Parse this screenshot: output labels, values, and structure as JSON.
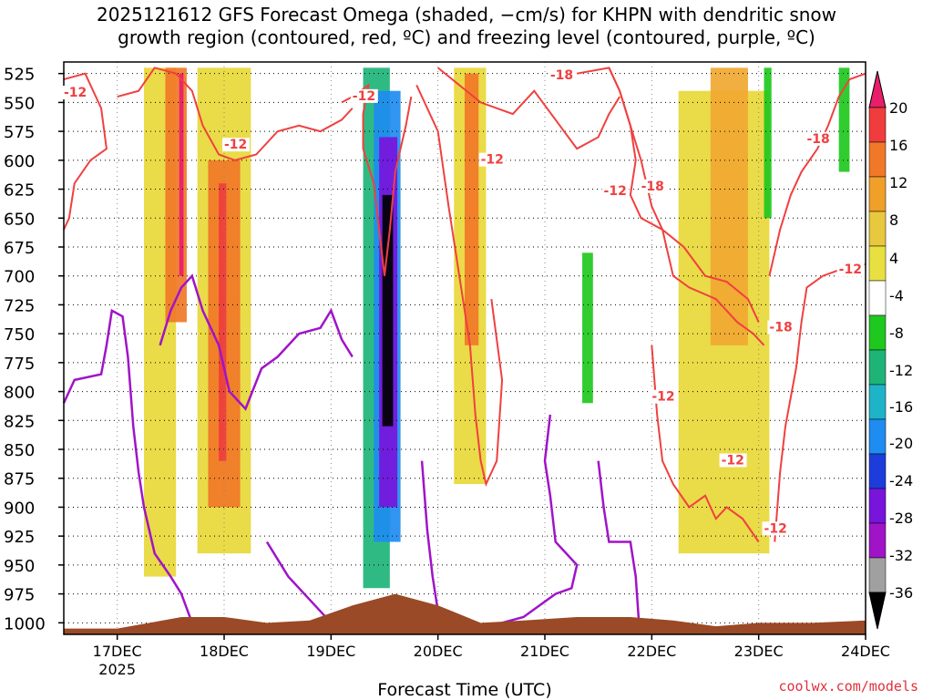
{
  "chart_data": {
    "type": "heatmap",
    "title_line1": "2025121612 GFS Forecast Omega (shaded, −cm/s) for KHPN with dendritic snow",
    "title_line2": "growth region (contoured, red, ºC) and freezing level (contoured, purple, ºC)",
    "xlabel": "Forecast Time (UTC)",
    "ylabel": "",
    "x_ticks": [
      "17DEC",
      "18DEC",
      "19DEC",
      "20DEC",
      "21DEC",
      "22DEC",
      "23DEC",
      "24DEC"
    ],
    "x_year": "2025",
    "x_range_days": [
      16.5,
      24.0
    ],
    "y_ticks": [
      525,
      550,
      575,
      600,
      625,
      650,
      675,
      700,
      725,
      750,
      775,
      800,
      825,
      850,
      875,
      900,
      925,
      950,
      975,
      1000
    ],
    "y_range_hpa": [
      515,
      1010
    ],
    "grid": true,
    "colorbar": {
      "labels": [
        "20",
        "16",
        "12",
        "8",
        "4",
        "-4",
        "-8",
        "-12",
        "-16",
        "-20",
        "-24",
        "-28",
        "-32",
        "-36"
      ],
      "colors": [
        "#e81e6a",
        "#f03c3c",
        "#f07828",
        "#f0a028",
        "#e8c83c",
        "#e8e040",
        "#ffffff",
        "#1ec81e",
        "#1eb478",
        "#1eb4c8",
        "#1e8cf0",
        "#1e3cdc",
        "#7814dc",
        "#a014c8",
        "#a0a0a0",
        "#000000"
      ]
    },
    "omega_bands": [
      {
        "day_start": 17.25,
        "day_end": 17.55,
        "p_top": 520,
        "p_bottom": 960,
        "class": "pos_4_8"
      },
      {
        "day_start": 17.45,
        "day_end": 17.65,
        "p_top": 520,
        "p_bottom": 740,
        "class": "pos_12_16"
      },
      {
        "day_start": 17.58,
        "day_end": 17.62,
        "p_top": 525,
        "p_bottom": 700,
        "class": "pos_20"
      },
      {
        "day_start": 17.75,
        "day_end": 18.25,
        "p_top": 520,
        "p_bottom": 940,
        "class": "pos_4_8"
      },
      {
        "day_start": 17.85,
        "day_end": 18.15,
        "p_top": 600,
        "p_bottom": 900,
        "class": "pos_12_16"
      },
      {
        "day_start": 17.95,
        "day_end": 18.02,
        "p_top": 620,
        "p_bottom": 860,
        "class": "pos_16_20"
      },
      {
        "day_start": 19.3,
        "day_end": 19.55,
        "p_top": 520,
        "p_bottom": 970,
        "class": "neg_8_12"
      },
      {
        "day_start": 19.4,
        "day_end": 19.65,
        "p_top": 540,
        "p_bottom": 930,
        "class": "neg_16_20"
      },
      {
        "day_start": 19.45,
        "day_end": 19.62,
        "p_top": 580,
        "p_bottom": 900,
        "class": "neg_24_28"
      },
      {
        "day_start": 19.48,
        "day_end": 19.58,
        "p_top": 630,
        "p_bottom": 830,
        "class": "neg_36"
      },
      {
        "day_start": 20.15,
        "day_end": 20.45,
        "p_top": 520,
        "p_bottom": 880,
        "class": "pos_4_8"
      },
      {
        "day_start": 20.25,
        "day_end": 20.38,
        "p_top": 525,
        "p_bottom": 760,
        "class": "pos_12_16"
      },
      {
        "day_start": 21.35,
        "day_end": 21.45,
        "p_top": 680,
        "p_bottom": 810,
        "class": "neg_4_8"
      },
      {
        "day_start": 22.25,
        "day_end": 23.1,
        "p_top": 540,
        "p_bottom": 940,
        "class": "pos_4_8"
      },
      {
        "day_start": 22.55,
        "day_end": 22.9,
        "p_top": 520,
        "p_bottom": 760,
        "class": "pos_8_12"
      },
      {
        "day_start": 23.05,
        "day_end": 23.12,
        "p_top": 520,
        "p_bottom": 650,
        "class": "neg_4_8"
      },
      {
        "day_start": 23.75,
        "day_end": 23.85,
        "p_top": 520,
        "p_bottom": 610,
        "class": "neg_4_8"
      }
    ],
    "dendritic_contours": [
      {
        "label": "-12",
        "points": [
          [
            16.5,
            530
          ],
          [
            16.7,
            525
          ],
          [
            16.85,
            555
          ],
          [
            16.9,
            590
          ],
          [
            16.75,
            600
          ],
          [
            16.6,
            620
          ],
          [
            16.55,
            650
          ],
          [
            16.5,
            660
          ]
        ]
      },
      {
        "label": "-12",
        "points": [
          [
            17.0,
            545
          ],
          [
            17.2,
            540
          ],
          [
            17.35,
            520
          ],
          [
            17.55,
            525
          ],
          [
            17.7,
            540
          ],
          [
            17.8,
            570
          ],
          [
            17.95,
            595
          ],
          [
            18.1,
            600
          ],
          [
            18.3,
            595
          ],
          [
            18.5,
            575
          ],
          [
            18.7,
            570
          ],
          [
            18.9,
            575
          ],
          [
            19.1,
            565
          ],
          [
            19.2,
            555
          ]
        ]
      },
      {
        "label": "-12",
        "points": [
          [
            19.1,
            550
          ],
          [
            19.2,
            545
          ],
          [
            19.35,
            535
          ],
          [
            19.3,
            560
          ],
          [
            19.3,
            590
          ],
          [
            19.4,
            620
          ],
          [
            19.45,
            660
          ],
          [
            19.5,
            700
          ],
          [
            19.55,
            660
          ],
          [
            19.6,
            610
          ],
          [
            19.7,
            570
          ],
          [
            19.75,
            545
          ]
        ]
      },
      {
        "label": "-12",
        "points": [
          [
            19.8,
            535
          ],
          [
            20.0,
            575
          ],
          [
            20.1,
            640
          ],
          [
            20.2,
            700
          ],
          [
            20.3,
            760
          ],
          [
            20.35,
            820
          ],
          [
            20.4,
            860
          ],
          [
            20.45,
            880
          ],
          [
            20.55,
            860
          ],
          [
            20.6,
            790
          ],
          [
            20.5,
            720
          ]
        ]
      },
      {
        "label": "-18",
        "points": [
          [
            20.0,
            520
          ],
          [
            20.4,
            550
          ],
          [
            20.7,
            560
          ],
          [
            20.9,
            540
          ],
          [
            21.1,
            565
          ],
          [
            21.3,
            590
          ],
          [
            21.5,
            580
          ],
          [
            21.6,
            560
          ],
          [
            21.7,
            545
          ]
        ]
      },
      {
        "label": "-12",
        "points": [
          [
            21.3,
            525
          ],
          [
            21.6,
            520
          ],
          [
            21.7,
            540
          ],
          [
            21.8,
            570
          ],
          [
            21.9,
            600
          ],
          [
            22.0,
            640
          ],
          [
            22.1,
            660
          ],
          [
            22.2,
            700
          ],
          [
            22.35,
            710
          ],
          [
            22.6,
            720
          ],
          [
            22.8,
            740
          ],
          [
            22.95,
            750
          ],
          [
            23.05,
            760
          ]
        ]
      },
      {
        "label": "-18",
        "points": [
          [
            21.6,
            520
          ],
          [
            21.7,
            540
          ],
          [
            21.8,
            570
          ],
          [
            21.85,
            600
          ],
          [
            21.8,
            630
          ],
          [
            21.9,
            650
          ],
          [
            22.1,
            660
          ],
          [
            22.3,
            675
          ],
          [
            22.5,
            700
          ],
          [
            22.7,
            705
          ],
          [
            22.9,
            720
          ],
          [
            23.0,
            740
          ]
        ]
      },
      {
        "label": "-12",
        "points": [
          [
            22.0,
            760
          ],
          [
            22.05,
            820
          ],
          [
            22.1,
            860
          ],
          [
            22.2,
            880
          ],
          [
            22.35,
            900
          ],
          [
            22.5,
            890
          ],
          [
            22.6,
            910
          ],
          [
            22.7,
            900
          ],
          [
            22.85,
            910
          ],
          [
            23.0,
            930
          ]
        ]
      },
      {
        "label": "-12",
        "points": [
          [
            23.15,
            930
          ],
          [
            23.2,
            870
          ],
          [
            23.25,
            830
          ],
          [
            23.35,
            780
          ],
          [
            23.4,
            740
          ],
          [
            23.45,
            710
          ],
          [
            23.6,
            700
          ],
          [
            23.75,
            695
          ],
          [
            23.9,
            690
          ],
          [
            24.0,
            690
          ]
        ]
      },
      {
        "label": "-18",
        "points": [
          [
            23.1,
            700
          ],
          [
            23.2,
            660
          ],
          [
            23.3,
            630
          ],
          [
            23.4,
            610
          ],
          [
            23.55,
            590
          ],
          [
            23.65,
            570
          ],
          [
            23.75,
            545
          ],
          [
            23.85,
            530
          ],
          [
            24.0,
            525
          ]
        ]
      }
    ],
    "freezing_contours": [
      {
        "label": "0",
        "points": [
          [
            16.5,
            810
          ],
          [
            16.6,
            790
          ],
          [
            16.85,
            785
          ],
          [
            16.9,
            760
          ],
          [
            16.95,
            730
          ],
          [
            17.05,
            735
          ],
          [
            17.1,
            770
          ],
          [
            17.15,
            830
          ],
          [
            17.2,
            870
          ],
          [
            17.25,
            900
          ],
          [
            17.35,
            940
          ],
          [
            17.5,
            960
          ],
          [
            17.6,
            975
          ],
          [
            17.7,
            1000
          ]
        ]
      },
      {
        "label": "0",
        "points": [
          [
            17.4,
            760
          ],
          [
            17.5,
            730
          ],
          [
            17.6,
            710
          ],
          [
            17.7,
            700
          ],
          [
            17.8,
            730
          ],
          [
            17.95,
            760
          ],
          [
            18.05,
            800
          ],
          [
            18.2,
            815
          ],
          [
            18.35,
            780
          ],
          [
            18.5,
            770
          ],
          [
            18.7,
            750
          ],
          [
            18.9,
            745
          ],
          [
            19.0,
            730
          ],
          [
            19.1,
            755
          ],
          [
            19.2,
            770
          ]
        ]
      },
      {
        "label": "0",
        "points": [
          [
            18.4,
            930
          ],
          [
            18.6,
            960
          ],
          [
            18.8,
            980
          ],
          [
            18.95,
            995
          ],
          [
            19.1,
            1000
          ]
        ]
      },
      {
        "label": "0",
        "points": [
          [
            19.85,
            860
          ],
          [
            19.9,
            920
          ],
          [
            19.95,
            960
          ],
          [
            20.0,
            990
          ],
          [
            20.05,
            1005
          ]
        ]
      },
      {
        "label": "0",
        "points": [
          [
            20.6,
            1000
          ],
          [
            20.8,
            995
          ],
          [
            20.95,
            985
          ],
          [
            21.1,
            975
          ],
          [
            21.25,
            970
          ],
          [
            21.3,
            950
          ],
          [
            21.1,
            930
          ],
          [
            21.05,
            890
          ],
          [
            21.0,
            860
          ],
          [
            21.05,
            820
          ]
        ]
      },
      {
        "label": "0",
        "points": [
          [
            21.5,
            860
          ],
          [
            21.55,
            900
          ],
          [
            21.6,
            930
          ],
          [
            21.8,
            930
          ],
          [
            21.85,
            960
          ],
          [
            21.88,
            1000
          ]
        ]
      }
    ],
    "dendritic_labels": [
      {
        "text": "-12",
        "day": 16.5,
        "p": 545
      },
      {
        "text": "-12",
        "day": 18.0,
        "p": 590
      },
      {
        "text": "-12",
        "day": 19.2,
        "p": 548
      },
      {
        "text": "-12",
        "day": 20.4,
        "p": 603
      },
      {
        "text": "-18",
        "day": 21.05,
        "p": 530
      },
      {
        "text": "-12",
        "day": 21.55,
        "p": 630
      },
      {
        "text": "-18",
        "day": 21.9,
        "p": 626
      },
      {
        "text": "-18",
        "day": 23.45,
        "p": 585
      },
      {
        "text": "-12",
        "day": 23.75,
        "p": 698
      },
      {
        "text": "-18",
        "day": 23.1,
        "p": 748
      },
      {
        "text": "-12",
        "day": 22.0,
        "p": 808
      },
      {
        "text": "-12",
        "day": 22.65,
        "p": 863
      },
      {
        "text": "-12",
        "day": 23.05,
        "p": 922
      }
    ],
    "terrain": {
      "p_surface": [
        1005,
        1005,
        1000,
        995,
        995,
        1000,
        998,
        985,
        975,
        985,
        1000,
        998,
        995,
        995,
        998,
        1003,
        1000,
        1000,
        998
      ],
      "day": [
        16.5,
        17.0,
        17.3,
        17.6,
        18.0,
        18.4,
        18.8,
        19.2,
        19.6,
        20.0,
        20.4,
        20.8,
        21.3,
        21.8,
        22.2,
        22.6,
        23.0,
        23.5,
        24.0
      ],
      "color": "#9a4a26"
    },
    "annotation_colors": {
      "dendritic": "#f04040",
      "freezing": "#a014c8",
      "label_bg": "#ffffff"
    }
  },
  "credit": "coolwx.com/models"
}
